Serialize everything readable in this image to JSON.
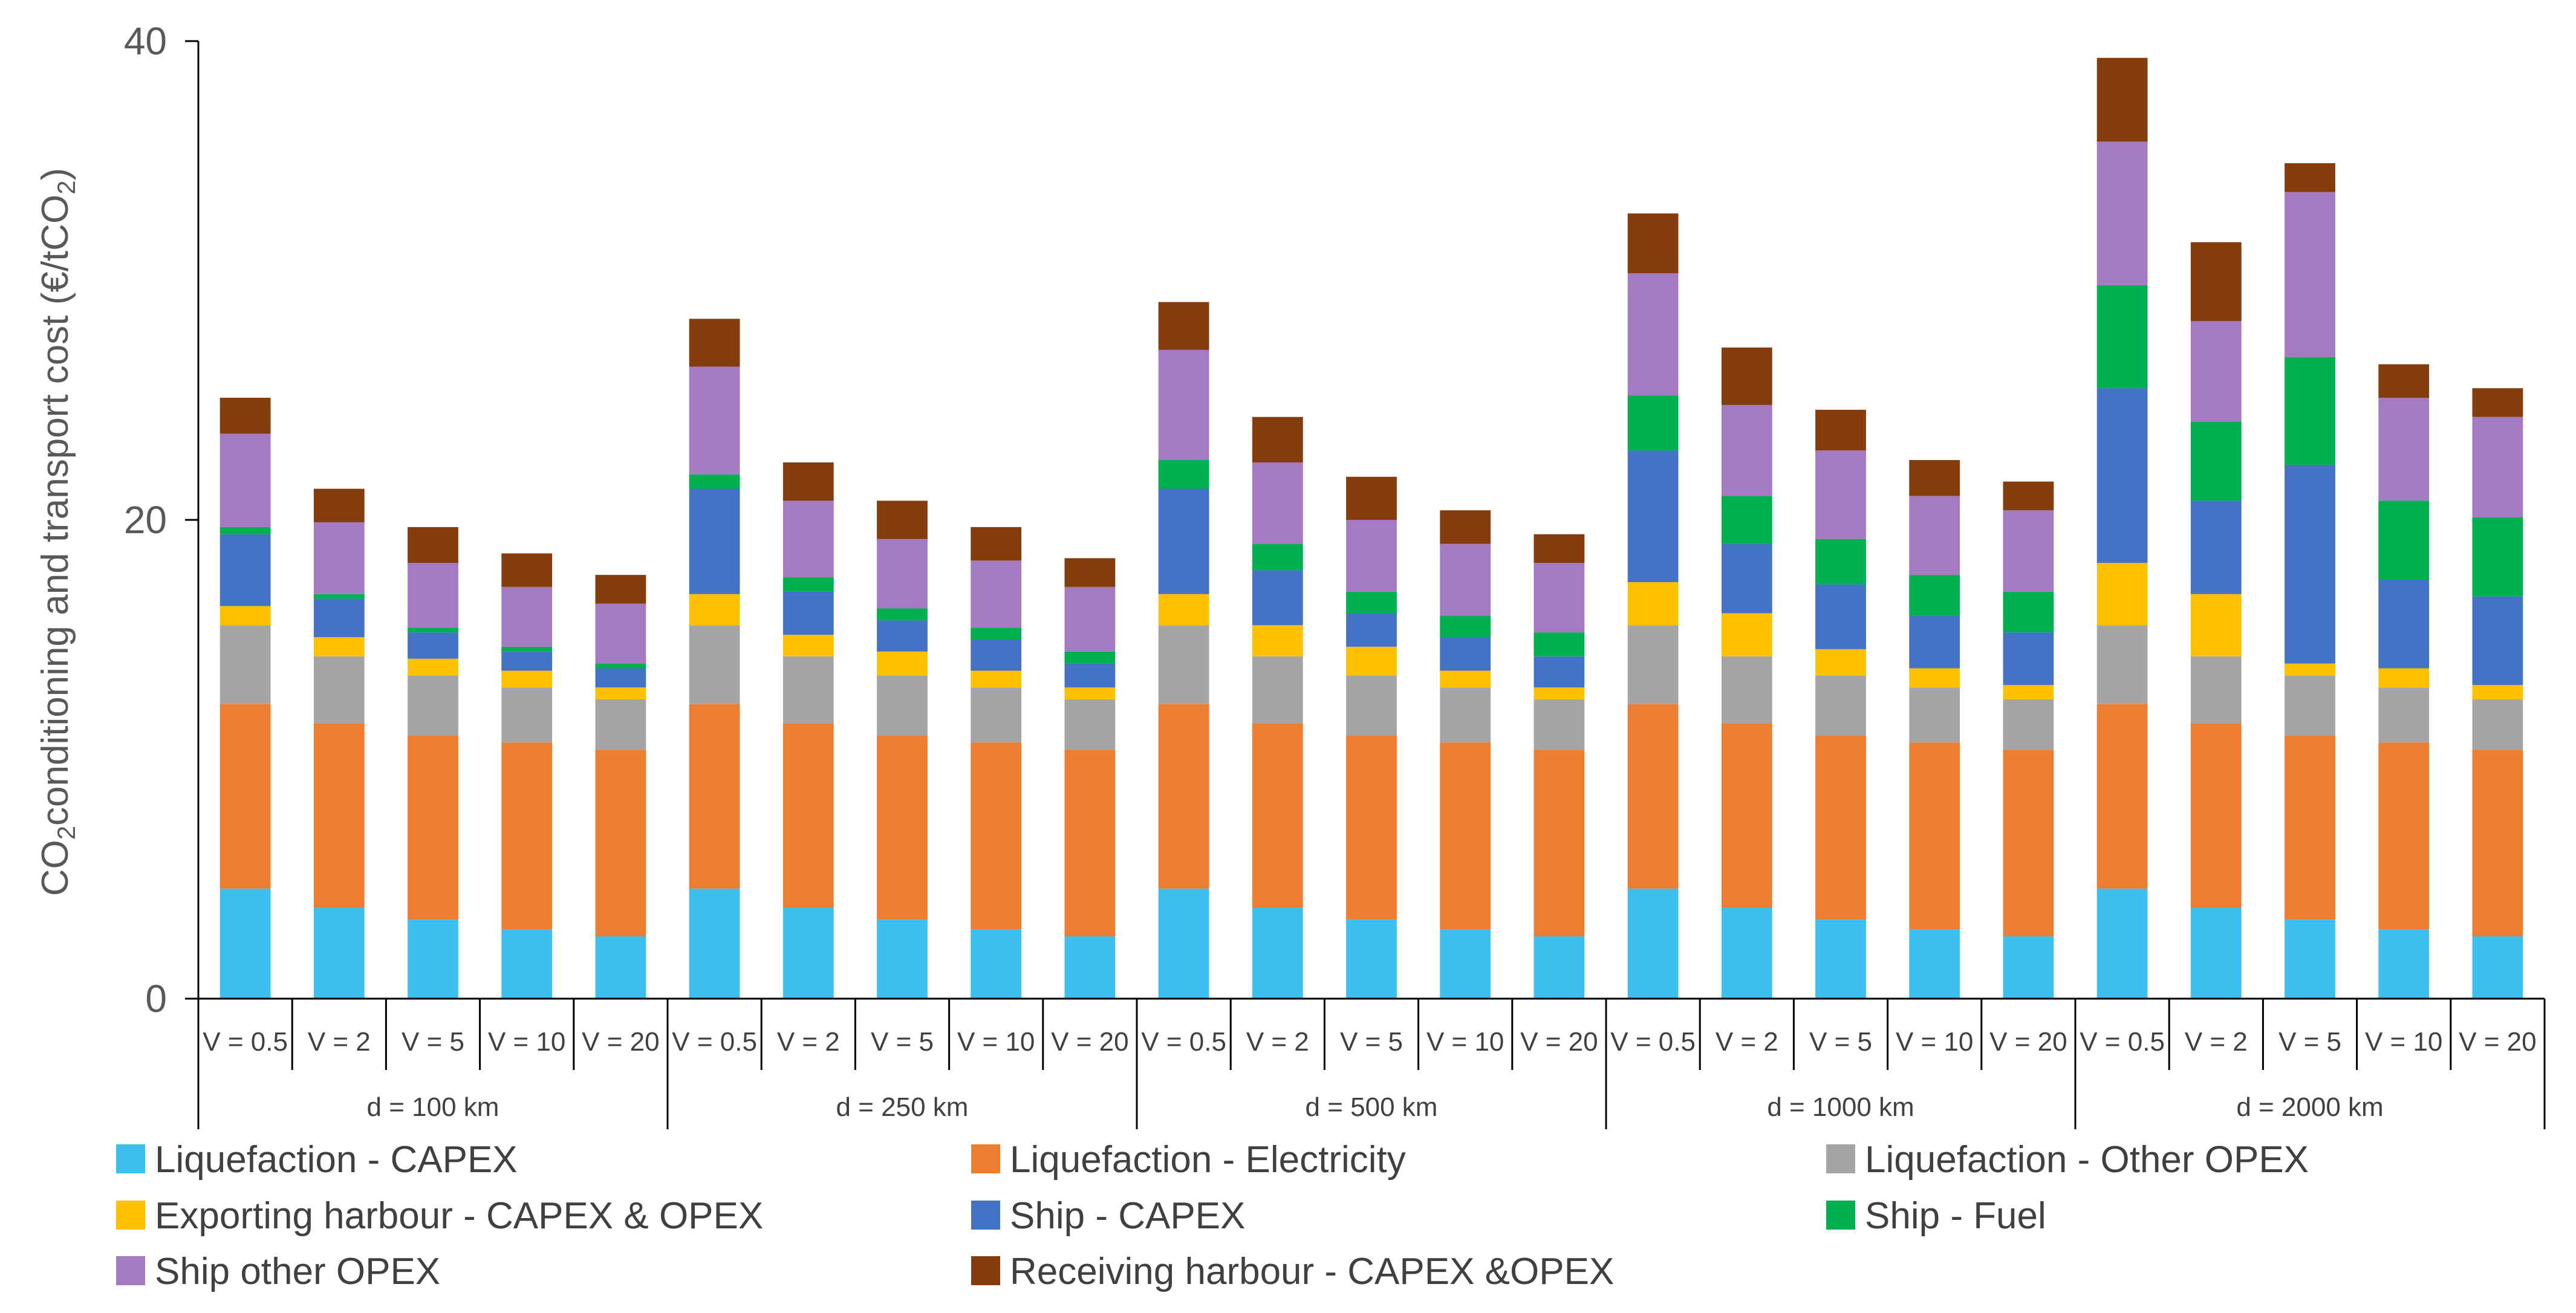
{
  "chart_data": {
    "type": "bar",
    "stacked": true,
    "title": "",
    "ylabel": "conditioning and transport cost (€/tCO",
    "ylabel_prefix": "CO",
    "ylabel_sub1": "2",
    "ylabel_sub2": "2",
    "ylabel_suffix": ")",
    "ylim": [
      0,
      40
    ],
    "yticks": [
      {
        "value": 0,
        "label": "0"
      },
      {
        "value": 20,
        "label": "20"
      },
      {
        "value": 40,
        "label": "40"
      }
    ],
    "groups": [
      "d = 100 km",
      "d = 250 km",
      "d = 500 km",
      "d = 1000 km",
      "d = 2000 km"
    ],
    "categories": [
      "V = 0.5",
      "V = 2",
      "V = 5",
      "V = 10",
      "V = 20",
      "V = 0.5",
      "V = 2",
      "V = 5",
      "V = 10",
      "V = 20",
      "V = 0.5",
      "V = 2",
      "V = 5",
      "V = 10",
      "V = 20",
      "V = 0.5",
      "V = 2",
      "V = 5",
      "V = 10",
      "V = 20",
      "V = 0.5",
      "V = 2",
      "V = 5",
      "V = 10",
      "V = 20"
    ],
    "legend_position": "bottom",
    "series": [
      {
        "name": "Liquefaction - CAPEX",
        "color": "#3DBFEF",
        "values": [
          4.6,
          3.8,
          3.3,
          2.9,
          2.6,
          4.6,
          3.8,
          3.3,
          2.9,
          2.6,
          4.6,
          3.8,
          3.3,
          2.9,
          2.6,
          4.6,
          3.8,
          3.3,
          2.9,
          2.6,
          4.6,
          3.8,
          3.3,
          2.9,
          2.6
        ]
      },
      {
        "name": "Liquefaction - Electricity",
        "color": "#ED7D31",
        "values": [
          7.7,
          7.7,
          7.7,
          7.8,
          7.8,
          7.7,
          7.7,
          7.7,
          7.8,
          7.8,
          7.7,
          7.7,
          7.7,
          7.8,
          7.8,
          7.7,
          7.7,
          7.7,
          7.8,
          7.8,
          7.7,
          7.7,
          7.7,
          7.8,
          7.8
        ]
      },
      {
        "name": "Liquefaction - Other OPEX",
        "color": "#A5A5A5",
        "values": [
          3.3,
          2.8,
          2.5,
          2.3,
          2.1,
          3.3,
          2.8,
          2.5,
          2.3,
          2.1,
          3.3,
          2.8,
          2.5,
          2.3,
          2.1,
          3.3,
          2.8,
          2.5,
          2.3,
          2.1,
          3.3,
          2.8,
          2.5,
          2.3,
          2.1
        ]
      },
      {
        "name": "Exporting harbour - CAPEX & OPEX",
        "color": "#FFC000",
        "values": [
          0.8,
          0.8,
          0.7,
          0.7,
          0.5,
          1.3,
          0.9,
          1.0,
          0.7,
          0.5,
          1.3,
          1.3,
          1.2,
          0.7,
          0.5,
          1.8,
          1.8,
          1.1,
          0.8,
          0.6,
          2.6,
          2.6,
          0.5,
          0.8,
          0.6
        ]
      },
      {
        "name": "Ship - CAPEX",
        "color": "#4472C4",
        "values": [
          3.0,
          1.6,
          1.1,
          0.8,
          0.8,
          4.4,
          1.8,
          1.3,
          1.3,
          1.0,
          4.4,
          2.3,
          1.4,
          1.4,
          1.3,
          5.5,
          2.9,
          2.7,
          2.2,
          2.2,
          7.3,
          3.9,
          8.3,
          3.7,
          3.7
        ]
      },
      {
        "name": "Ship - Fuel",
        "color": "#00B050",
        "values": [
          0.3,
          0.2,
          0.2,
          0.2,
          0.2,
          0.6,
          0.6,
          0.5,
          0.5,
          0.5,
          1.2,
          1.1,
          0.9,
          0.9,
          1.0,
          2.3,
          2.0,
          1.9,
          1.7,
          1.7,
          4.3,
          3.3,
          4.5,
          3.3,
          3.3
        ]
      },
      {
        "name": "Ship other OPEX",
        "color": "#A47AC2",
        "values": [
          3.9,
          3.0,
          2.7,
          2.5,
          2.5,
          4.5,
          3.2,
          2.9,
          2.8,
          2.7,
          4.6,
          3.4,
          3.0,
          3.0,
          2.9,
          5.1,
          3.8,
          3.7,
          3.3,
          3.4,
          6.0,
          4.2,
          6.9,
          4.3,
          4.2
        ]
      },
      {
        "name": "Receiving harbour - CAPEX &OPEX",
        "color": "#843C0C",
        "values": [
          1.5,
          1.4,
          1.5,
          1.4,
          1.2,
          2.0,
          1.6,
          1.6,
          1.4,
          1.2,
          2.0,
          1.9,
          1.8,
          1.4,
          1.2,
          2.5,
          2.4,
          1.7,
          1.5,
          1.2,
          3.5,
          3.3,
          1.2,
          1.4,
          1.2
        ]
      }
    ]
  }
}
